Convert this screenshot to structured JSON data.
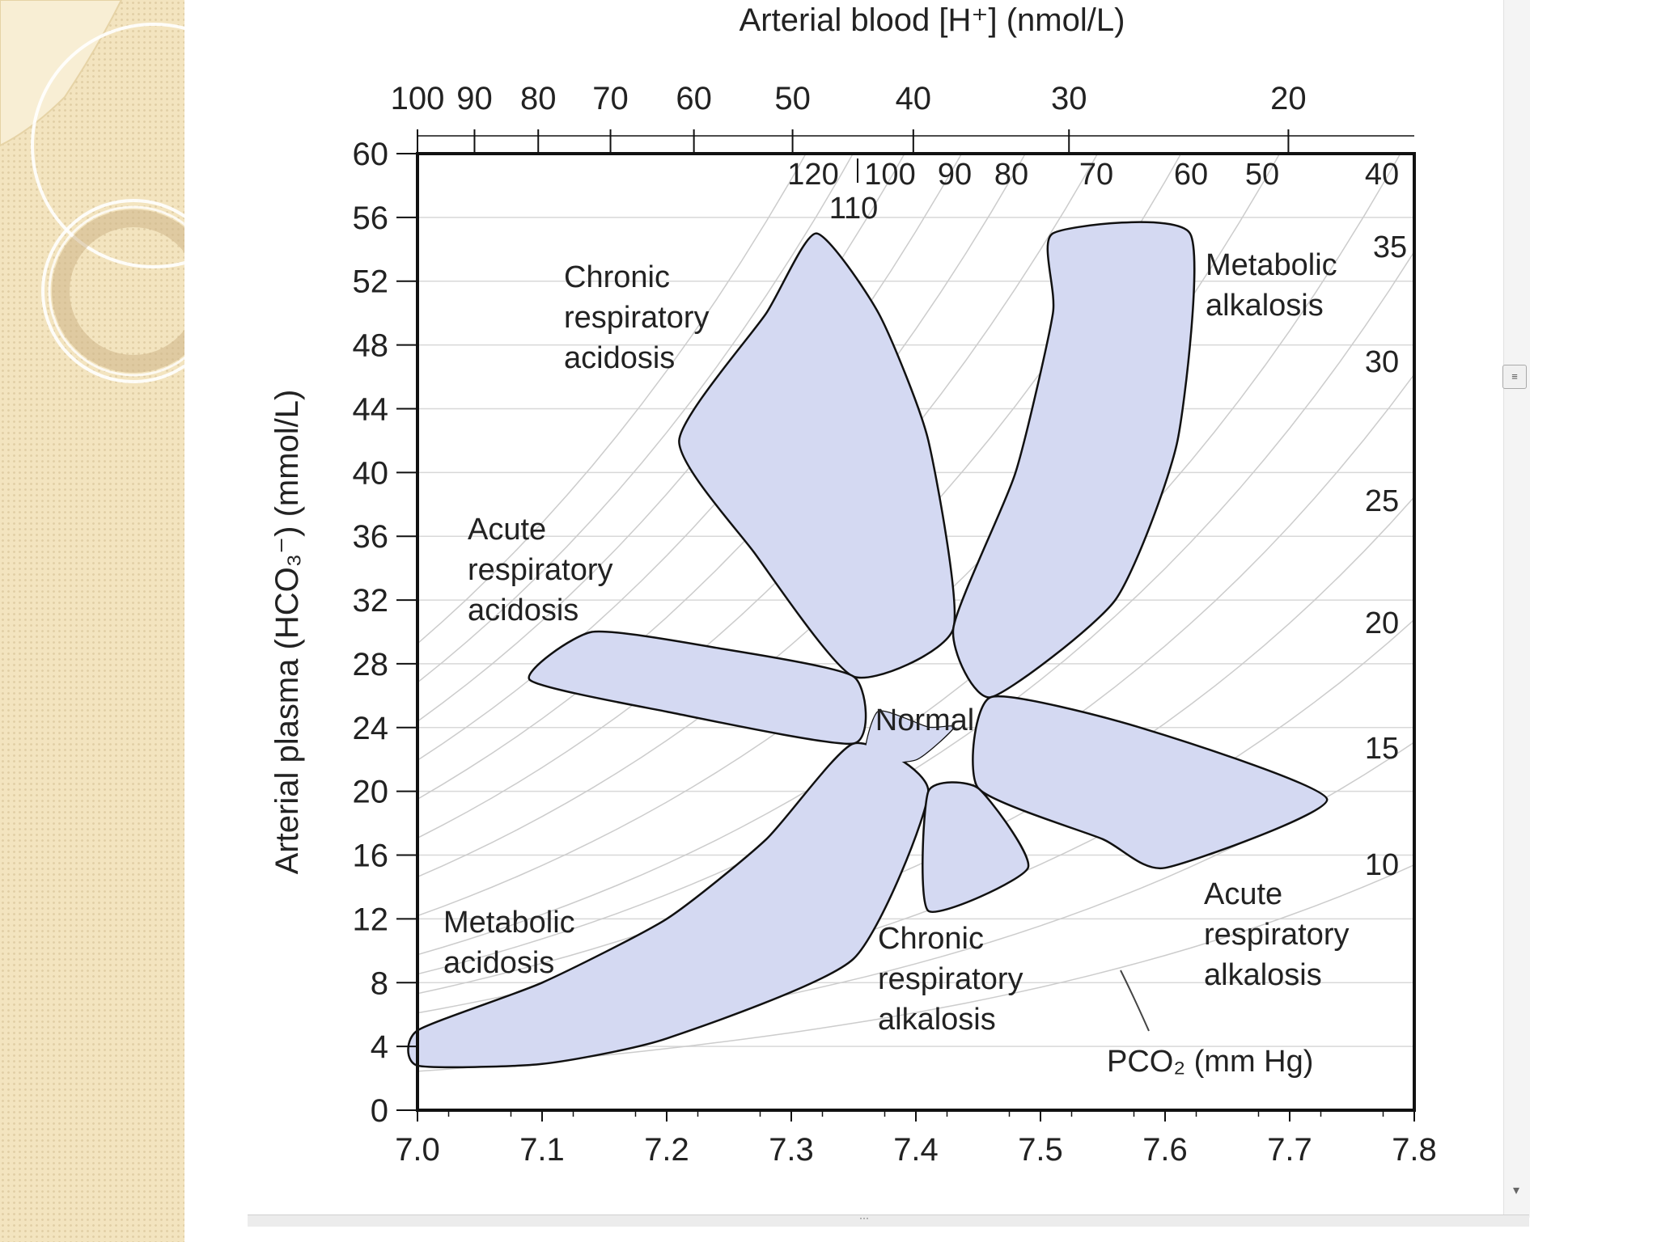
{
  "chart_data": {
    "type": "area",
    "title": "Arterial blood [H⁺] (nmol/L)",
    "xlabel": "",
    "ylabel": "Arterial plasma (HCO₃⁻) (mmol/L)",
    "xlim": [
      7.0,
      7.8
    ],
    "ylim": [
      0,
      60
    ],
    "x_ticks": [
      "7.0",
      "7.1",
      "7.2",
      "7.3",
      "7.4",
      "7.5",
      "7.6",
      "7.7",
      "7.8"
    ],
    "y_ticks": [
      "0",
      "4",
      "8",
      "12",
      "16",
      "20",
      "24",
      "28",
      "32",
      "36",
      "40",
      "44",
      "48",
      "52",
      "56",
      "60"
    ],
    "top_axis": {
      "label": "Arterial blood [H⁺] (nmol/L)",
      "ticks": [
        {
          "label": "100",
          "value": 100
        },
        {
          "label": "90",
          "value": 90
        },
        {
          "label": "80",
          "value": 80
        },
        {
          "label": "70",
          "value": 70
        },
        {
          "label": "60",
          "value": 60
        },
        {
          "label": "50",
          "value": 50
        },
        {
          "label": "40",
          "value": 40
        },
        {
          "label": "30",
          "value": 30
        },
        {
          "label": "20",
          "value": 20
        }
      ]
    },
    "pco2_isobars": {
      "label": "PCO₂ (mm Hg)",
      "values": [
        120,
        110,
        100,
        90,
        80,
        70,
        60,
        50,
        40,
        35,
        30,
        25,
        20,
        15,
        10
      ],
      "top_labels": [
        "120",
        "110",
        "100",
        "90",
        "80",
        "70",
        "60",
        "50",
        "40"
      ],
      "right_labels": [
        "35",
        "30",
        "25",
        "20",
        "15",
        "10"
      ]
    },
    "series": [
      {
        "name": "Normal",
        "label": "Normal",
        "points": [
          [
            7.37,
            25
          ],
          [
            7.41,
            24
          ],
          [
            7.43,
            24
          ],
          [
            7.4,
            22
          ],
          [
            7.36,
            22
          ]
        ]
      },
      {
        "name": "Metabolic acidosis",
        "label_lines": [
          "Metabolic",
          "acidosis"
        ],
        "points": [
          [
            7.0,
            5
          ],
          [
            7.1,
            8
          ],
          [
            7.2,
            12
          ],
          [
            7.28,
            17
          ],
          [
            7.35,
            23
          ],
          [
            7.41,
            20
          ],
          [
            7.35,
            9.5
          ],
          [
            7.2,
            4.5
          ],
          [
            7.1,
            2.9
          ],
          [
            7.0,
            2.8
          ]
        ]
      },
      {
        "name": "Chronic respiratory acidosis",
        "label_lines": [
          "Chronic",
          "respiratory",
          "acidosis"
        ],
        "points": [
          [
            7.21,
            42
          ],
          [
            7.28,
            50
          ],
          [
            7.32,
            55
          ],
          [
            7.37,
            50
          ],
          [
            7.41,
            42
          ],
          [
            7.43,
            30.2
          ],
          [
            7.35,
            27.2
          ],
          [
            7.27,
            35
          ]
        ]
      },
      {
        "name": "Acute respiratory acidosis",
        "label_lines": [
          "Acute",
          "respiratory",
          "acidosis"
        ],
        "points": [
          [
            7.14,
            30
          ],
          [
            7.24,
            29
          ],
          [
            7.35,
            27.2
          ],
          [
            7.35,
            23
          ],
          [
            7.2,
            25
          ],
          [
            7.09,
            27
          ]
        ]
      },
      {
        "name": "Metabolic alkalosis",
        "label_lines": [
          "Metabolic",
          "alkalosis"
        ],
        "points": [
          [
            7.51,
            55
          ],
          [
            7.62,
            55
          ],
          [
            7.61,
            42
          ],
          [
            7.56,
            32
          ],
          [
            7.46,
            25.9
          ],
          [
            7.43,
            30.2
          ],
          [
            7.48,
            40
          ],
          [
            7.51,
            50
          ]
        ]
      },
      {
        "name": "Acute respiratory alkalosis",
        "label_lines": [
          "Acute",
          "respiratory",
          "alkalosis"
        ],
        "points": [
          [
            7.46,
            25.9
          ],
          [
            7.58,
            24
          ],
          [
            7.73,
            19.5
          ],
          [
            7.6,
            15.2
          ],
          [
            7.55,
            17
          ],
          [
            7.45,
            20.2
          ]
        ]
      },
      {
        "name": "Chronic respiratory alkalosis",
        "label_lines": [
          "Chronic",
          "respiratory",
          "alkalosis"
        ],
        "points": [
          [
            7.45,
            20.2
          ],
          [
            7.49,
            15.2
          ],
          [
            7.41,
            12.5
          ],
          [
            7.41,
            20
          ]
        ]
      }
    ],
    "colors": {
      "region": "#d4d9f2",
      "outline": "#111111",
      "grid": "#d8d8d8",
      "isobar": "#cccccc"
    }
  },
  "ui": {
    "scroll_thumb_glyph": "≡",
    "scroll_down_glyph": "▾",
    "hscroll_grip_glyph": "···"
  }
}
